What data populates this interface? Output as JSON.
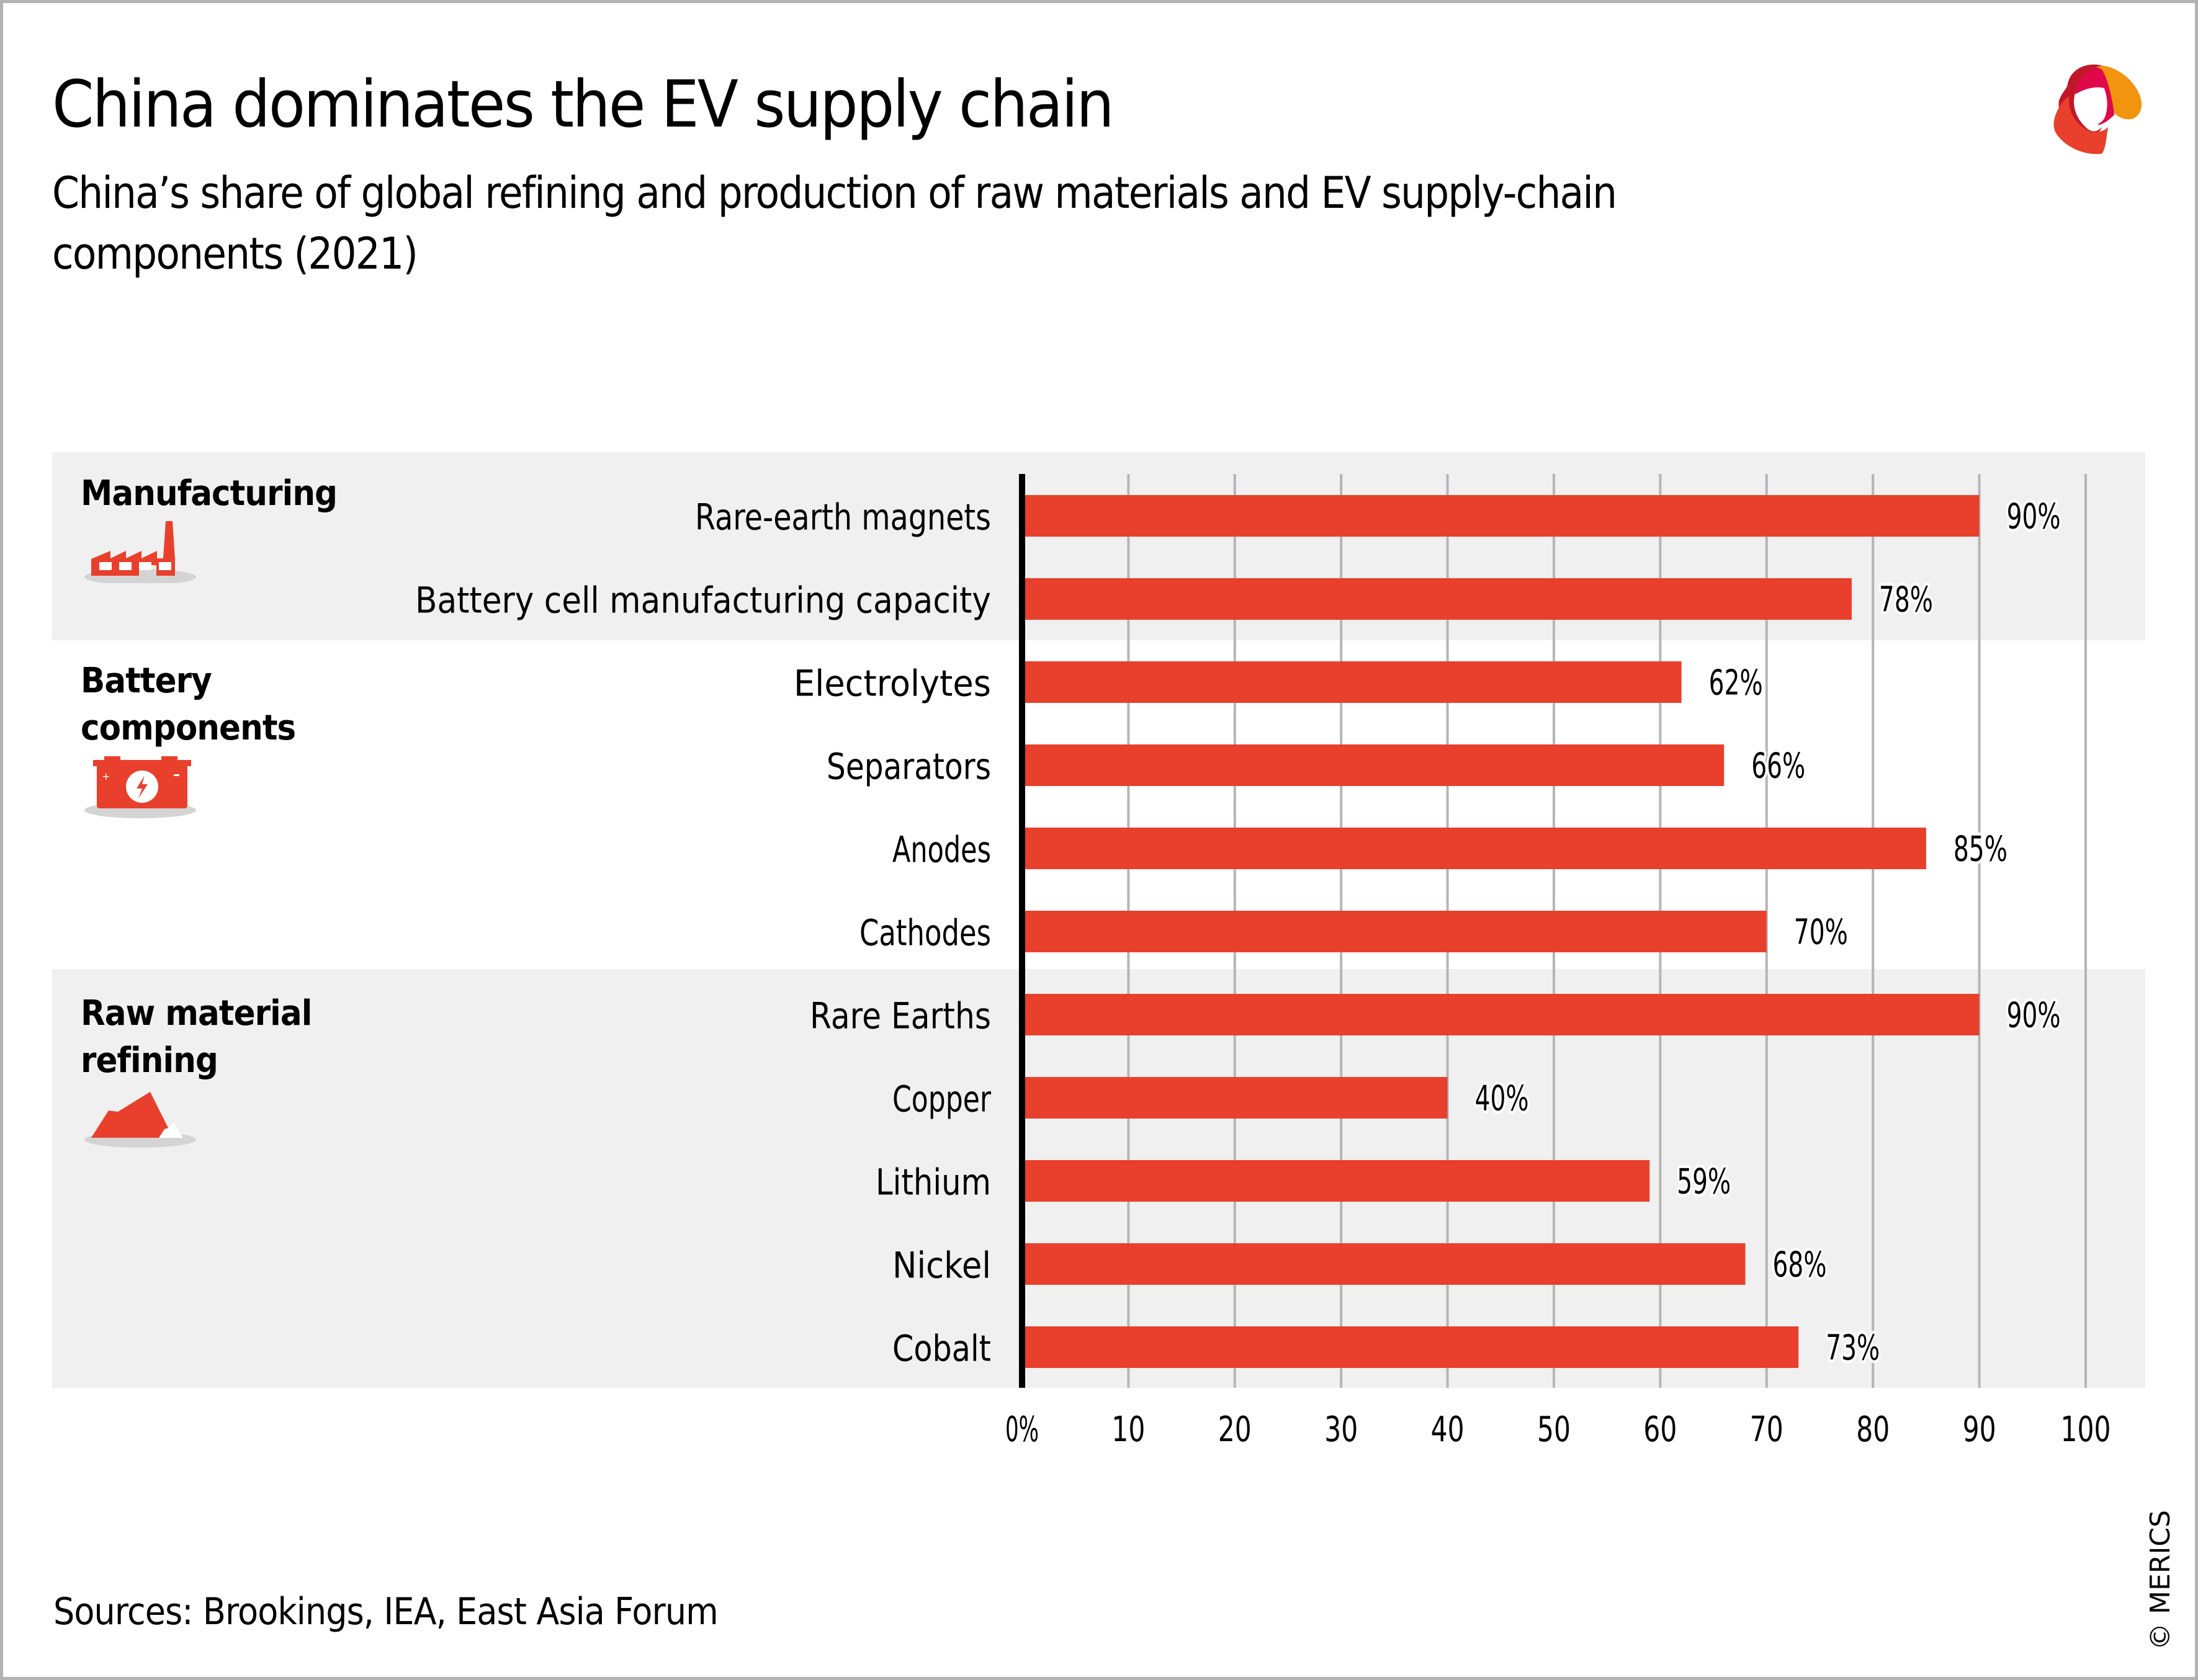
{
  "header": {
    "title": "China dominates the EV supply chain",
    "subtitle": "China’s share of global refining and production of raw materials and EV supply-chain components (2021)"
  },
  "brand": {
    "logo": "merics-logo-icon"
  },
  "colors": {
    "bar": "#e8402c",
    "band": "#f0f0f0",
    "gridline": "#b5b5b5",
    "axis": "#000000",
    "logo_red": "#c0182a",
    "logo_magenta": "#e0084a",
    "logo_orange": "#f29410",
    "logo_orange_red": "#e8402c"
  },
  "groups": [
    {
      "label_lines": [
        "Manufacturing"
      ],
      "icon": "factory-icon",
      "shaded": true
    },
    {
      "label_lines": [
        "Battery",
        "components"
      ],
      "icon": "battery-icon",
      "shaded": false
    },
    {
      "label_lines": [
        "Raw material",
        "refining"
      ],
      "icon": "ore-rock-icon",
      "shaded": true
    }
  ],
  "chart_data": {
    "type": "bar",
    "orientation": "horizontal",
    "title": "China dominates the EV supply chain",
    "subtitle": "China’s share of global refining and production of raw materials and EV supply-chain components (2021)",
    "xlabel": "",
    "ylabel": "",
    "xlim": [
      0,
      100
    ],
    "x_ticks": [
      0,
      10,
      20,
      30,
      40,
      50,
      60,
      70,
      80,
      90,
      100
    ],
    "x_tick_labels": [
      "0%",
      "10",
      "20",
      "30",
      "40",
      "50",
      "60",
      "70",
      "80",
      "90",
      "100"
    ],
    "grid": true,
    "legend": "none",
    "unit": "%",
    "categories": [
      "Rare-earth magnets",
      "Battery cell manufacturing capacity",
      "Electrolytes",
      "Separators",
      "Anodes",
      "Cathodes",
      "Rare Earths",
      "Copper",
      "Lithium",
      "Nickel",
      "Cobalt"
    ],
    "category_groups": [
      "Manufacturing",
      "Manufacturing",
      "Battery components",
      "Battery components",
      "Battery components",
      "Battery components",
      "Raw material refining",
      "Raw material refining",
      "Raw material refining",
      "Raw material refining",
      "Raw material refining"
    ],
    "values": [
      90,
      78,
      62,
      66,
      85,
      70,
      90,
      40,
      59,
      68,
      73
    ],
    "value_labels": [
      "90%",
      "78%",
      "62%",
      "66%",
      "85%",
      "70%",
      "90%",
      "40%",
      "59%",
      "68%",
      "73%"
    ]
  },
  "footer": {
    "sources": "Sources: Brookings, IEA, East Asia Forum",
    "copyright": "© MERICS"
  }
}
